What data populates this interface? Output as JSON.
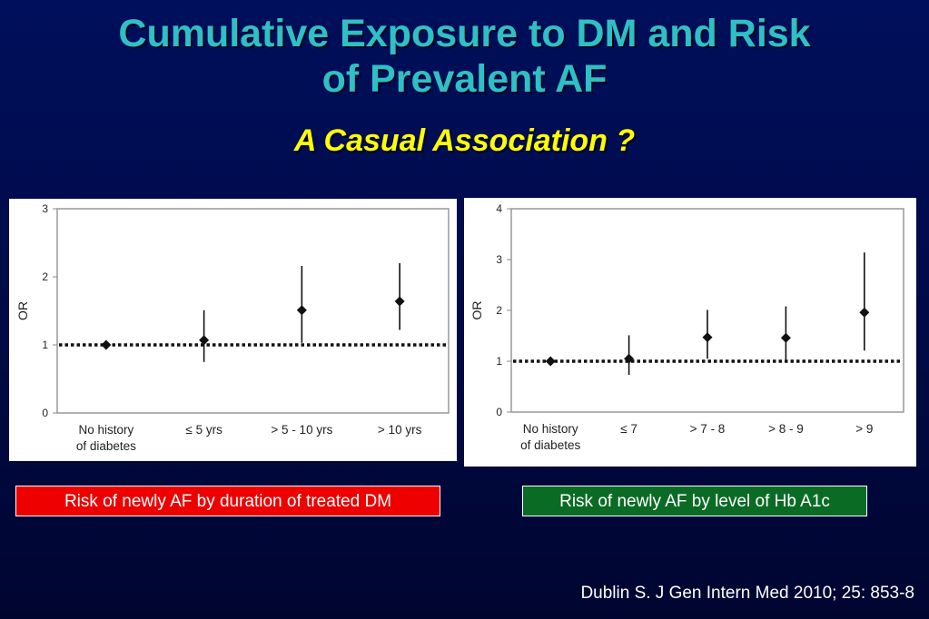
{
  "slide": {
    "title_line1": "Cumulative Exposure to DM and Risk",
    "title_line2": "of Prevalent AF",
    "subtitle": "A Casual Association ?",
    "citation": "Dublin S. J Gen Intern Med 2010; 25: 853-8",
    "colors": {
      "background": "#000a45",
      "title": "#2fbfc6",
      "subtitle": "#ffff00",
      "caption_left": "#ee0000",
      "caption_right": "#0a6b25"
    }
  },
  "captions": {
    "left": "Risk of newly AF by duration of treated DM",
    "right": "Risk of newly AF by level of Hb A1c"
  },
  "chart_data": [
    {
      "type": "scatter",
      "title": "",
      "ylabel": "OR",
      "xlabel": "",
      "ylim": [
        0,
        3
      ],
      "yticks": [
        0,
        1,
        2,
        3
      ],
      "reference_line": 1,
      "categories": [
        [
          "No history",
          "of diabetes"
        ],
        [
          "≤ 5 yrs"
        ],
        [
          "> 5 - 10 yrs"
        ],
        [
          "> 10 yrs"
        ]
      ],
      "values": [
        1.0,
        1.07,
        1.51,
        1.64
      ],
      "lower": [
        1.0,
        0.75,
        1.03,
        1.22
      ],
      "upper": [
        1.0,
        1.51,
        2.16,
        2.2
      ],
      "grid": false
    },
    {
      "type": "scatter",
      "title": "",
      "ylabel": "OR",
      "xlabel": "",
      "ylim": [
        0,
        4
      ],
      "yticks": [
        0,
        1,
        2,
        3,
        4
      ],
      "reference_line": 1,
      "categories": [
        [
          "No history",
          "of diabetes"
        ],
        [
          "≤ 7"
        ],
        [
          "> 7 - 8"
        ],
        [
          "> 8 - 9"
        ],
        [
          "> 9"
        ]
      ],
      "values": [
        1.0,
        1.05,
        1.47,
        1.46,
        1.96
      ],
      "lower": [
        1.0,
        0.73,
        1.05,
        1.03,
        1.21
      ],
      "upper": [
        1.0,
        1.51,
        2.01,
        2.08,
        3.14
      ],
      "grid": false
    }
  ]
}
